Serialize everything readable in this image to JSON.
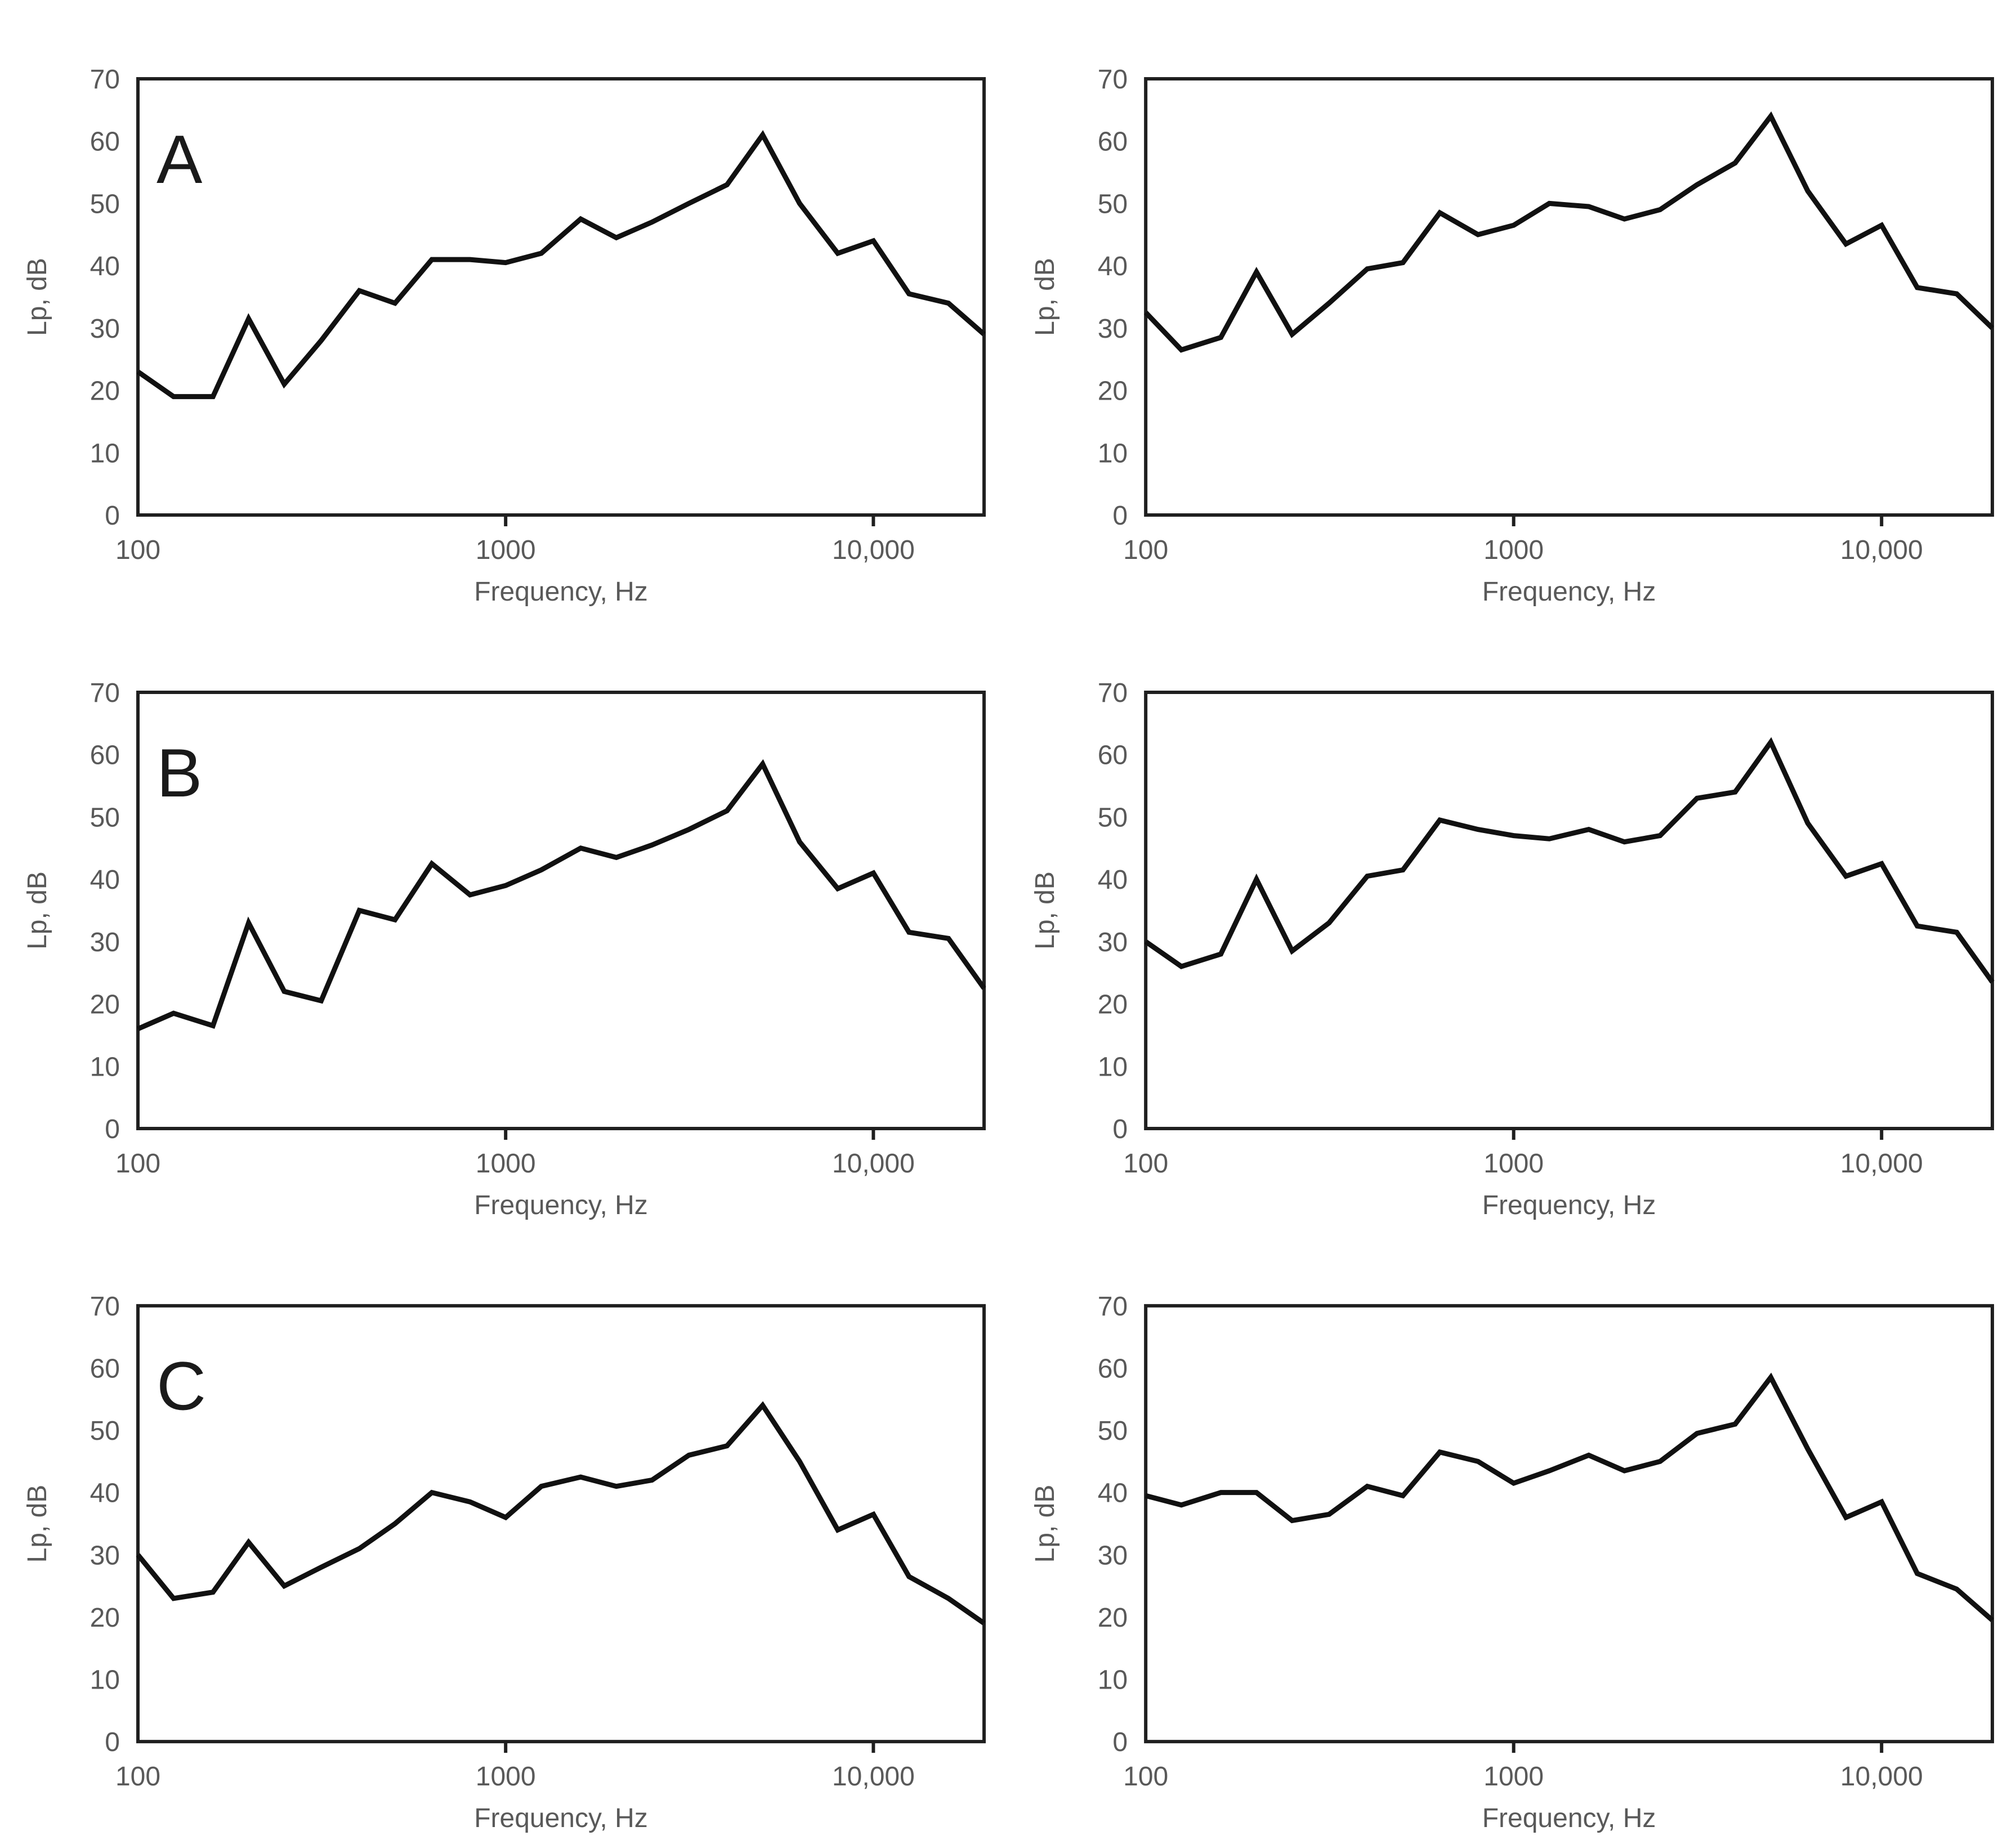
{
  "page": {
    "background_color": "#ffffff",
    "layout": "2x3 grid of third-octave band sound pressure level spectra"
  },
  "styles": {
    "axis_text_color": "#595959",
    "axis_line_color": "#1f1f1f",
    "panel_label_color": "#1a1a1a",
    "line_color": "#111111"
  },
  "chart_data": [
    {
      "type": "line",
      "panel": "top-left",
      "panel_label": "A",
      "xlabel": "Frequency, Hz",
      "ylabel": "Lp, dB",
      "xscale": "log",
      "xlim": [
        100,
        20000
      ],
      "ylim": [
        0,
        70
      ],
      "grid": false,
      "legend": "none",
      "yticks": [
        0,
        10,
        20,
        30,
        40,
        50,
        60,
        70
      ],
      "xticks": [
        {
          "value": 100,
          "label": "100",
          "tick": false
        },
        {
          "value": 1000,
          "label": "1000",
          "tick": true
        },
        {
          "value": 10000,
          "label": "10,000",
          "tick": true
        }
      ],
      "line_color": "#111111",
      "x": [
        100,
        125,
        160,
        200,
        250,
        315,
        400,
        500,
        630,
        800,
        1000,
        1250,
        1600,
        2000,
        2500,
        3150,
        4000,
        5000,
        6300,
        8000,
        10000,
        12500,
        16000,
        20000
      ],
      "y": [
        23,
        19,
        19,
        31.5,
        21,
        28,
        36,
        34,
        41,
        41,
        40.5,
        42,
        47.5,
        44.5,
        47,
        50,
        53,
        61,
        50,
        42,
        44,
        35.5,
        34,
        29
      ]
    },
    {
      "type": "line",
      "panel": "top-right",
      "panel_label": "",
      "xlabel": "Frequency, Hz",
      "ylabel": "Lp, dB",
      "xscale": "log",
      "xlim": [
        100,
        20000
      ],
      "ylim": [
        0,
        70
      ],
      "grid": false,
      "legend": "none",
      "yticks": [
        0,
        10,
        20,
        30,
        40,
        50,
        60,
        70
      ],
      "xticks": [
        {
          "value": 100,
          "label": "100",
          "tick": false
        },
        {
          "value": 1000,
          "label": "1000",
          "tick": true
        },
        {
          "value": 10000,
          "label": "10,000",
          "tick": true
        }
      ],
      "line_color": "#111111",
      "x": [
        100,
        125,
        160,
        200,
        250,
        315,
        400,
        500,
        630,
        800,
        1000,
        1250,
        1600,
        2000,
        2500,
        3150,
        4000,
        5000,
        6300,
        8000,
        10000,
        12500,
        16000,
        20000
      ],
      "y": [
        32.5,
        26.5,
        28.5,
        39,
        29,
        34,
        39.5,
        40.5,
        48.5,
        45,
        46.5,
        50,
        49.5,
        47.5,
        49,
        53,
        56.5,
        64,
        52,
        43.5,
        46.5,
        36.5,
        35.5,
        30
      ]
    },
    {
      "type": "line",
      "panel": "middle-left",
      "panel_label": "B",
      "xlabel": "Frequency, Hz",
      "ylabel": "Lp, dB",
      "xscale": "log",
      "xlim": [
        100,
        20000
      ],
      "ylim": [
        0,
        70
      ],
      "grid": false,
      "legend": "none",
      "yticks": [
        0,
        10,
        20,
        30,
        40,
        50,
        60,
        70
      ],
      "xticks": [
        {
          "value": 100,
          "label": "100",
          "tick": false
        },
        {
          "value": 1000,
          "label": "1000",
          "tick": true
        },
        {
          "value": 10000,
          "label": "10,000",
          "tick": true
        }
      ],
      "line_color": "#111111",
      "x": [
        100,
        125,
        160,
        200,
        250,
        315,
        400,
        500,
        630,
        800,
        1000,
        1250,
        1600,
        2000,
        2500,
        3150,
        4000,
        5000,
        6300,
        8000,
        10000,
        12500,
        16000,
        20000
      ],
      "y": [
        16,
        18.5,
        16.5,
        33,
        22,
        20.5,
        35,
        33.5,
        42.5,
        37.5,
        39,
        41.5,
        45,
        43.5,
        45.5,
        48,
        51,
        58.5,
        46,
        38.5,
        41,
        31.5,
        30.5,
        22.5
      ]
    },
    {
      "type": "line",
      "panel": "middle-right",
      "panel_label": "",
      "xlabel": "Frequency, Hz",
      "ylabel": "Lp, dB",
      "xscale": "log",
      "xlim": [
        100,
        20000
      ],
      "ylim": [
        0,
        70
      ],
      "grid": false,
      "legend": "none",
      "yticks": [
        0,
        10,
        20,
        30,
        40,
        50,
        60,
        70
      ],
      "xticks": [
        {
          "value": 100,
          "label": "100",
          "tick": false
        },
        {
          "value": 1000,
          "label": "1000",
          "tick": true
        },
        {
          "value": 10000,
          "label": "10,000",
          "tick": true
        }
      ],
      "line_color": "#111111",
      "x": [
        100,
        125,
        160,
        200,
        250,
        315,
        400,
        500,
        630,
        800,
        1000,
        1250,
        1600,
        2000,
        2500,
        3150,
        4000,
        5000,
        6300,
        8000,
        10000,
        12500,
        16000,
        20000
      ],
      "y": [
        30,
        26,
        28,
        40,
        28.5,
        33,
        40.5,
        41.5,
        49.5,
        48,
        47,
        46.5,
        48,
        46,
        47,
        53,
        54,
        62,
        49,
        40.5,
        42.5,
        32.5,
        31.5,
        23.5
      ]
    },
    {
      "type": "line",
      "panel": "bottom-left",
      "panel_label": "C",
      "xlabel": "Frequency, Hz",
      "ylabel": "Lp, dB",
      "xscale": "log",
      "xlim": [
        100,
        20000
      ],
      "ylim": [
        0,
        70
      ],
      "grid": false,
      "legend": "none",
      "yticks": [
        0,
        10,
        20,
        30,
        40,
        50,
        60,
        70
      ],
      "xticks": [
        {
          "value": 100,
          "label": "100",
          "tick": false
        },
        {
          "value": 1000,
          "label": "1000",
          "tick": true
        },
        {
          "value": 10000,
          "label": "10,000",
          "tick": true
        }
      ],
      "line_color": "#111111",
      "x": [
        100,
        125,
        160,
        200,
        250,
        315,
        400,
        500,
        630,
        800,
        1000,
        1250,
        1600,
        2000,
        2500,
        3150,
        4000,
        5000,
        6300,
        8000,
        10000,
        12500,
        16000,
        20000
      ],
      "y": [
        30,
        23,
        24,
        32,
        25,
        28,
        31,
        35,
        40,
        38.5,
        36,
        41,
        42.5,
        41,
        42,
        46,
        47.5,
        54,
        45,
        34,
        36.5,
        26.5,
        23,
        19
      ]
    },
    {
      "type": "line",
      "panel": "bottom-right",
      "panel_label": "",
      "xlabel": "Frequency, Hz",
      "ylabel": "Lp, dB",
      "xscale": "log",
      "xlim": [
        100,
        20000
      ],
      "ylim": [
        0,
        70
      ],
      "grid": false,
      "legend": "none",
      "yticks": [
        0,
        10,
        20,
        30,
        40,
        50,
        60,
        70
      ],
      "xticks": [
        {
          "value": 100,
          "label": "100",
          "tick": false
        },
        {
          "value": 1000,
          "label": "1000",
          "tick": true
        },
        {
          "value": 10000,
          "label": "10,000",
          "tick": true
        }
      ],
      "line_color": "#111111",
      "x": [
        100,
        125,
        160,
        200,
        250,
        315,
        400,
        500,
        630,
        800,
        1000,
        1250,
        1600,
        2000,
        2500,
        3150,
        4000,
        5000,
        6300,
        8000,
        10000,
        12500,
        16000,
        20000
      ],
      "y": [
        39.5,
        38,
        40,
        40,
        35.5,
        36.5,
        41,
        39.5,
        46.5,
        45,
        41.5,
        43.5,
        46,
        43.5,
        45,
        49.5,
        51,
        58.5,
        47,
        36,
        38.5,
        27,
        24.5,
        19.5
      ]
    }
  ]
}
